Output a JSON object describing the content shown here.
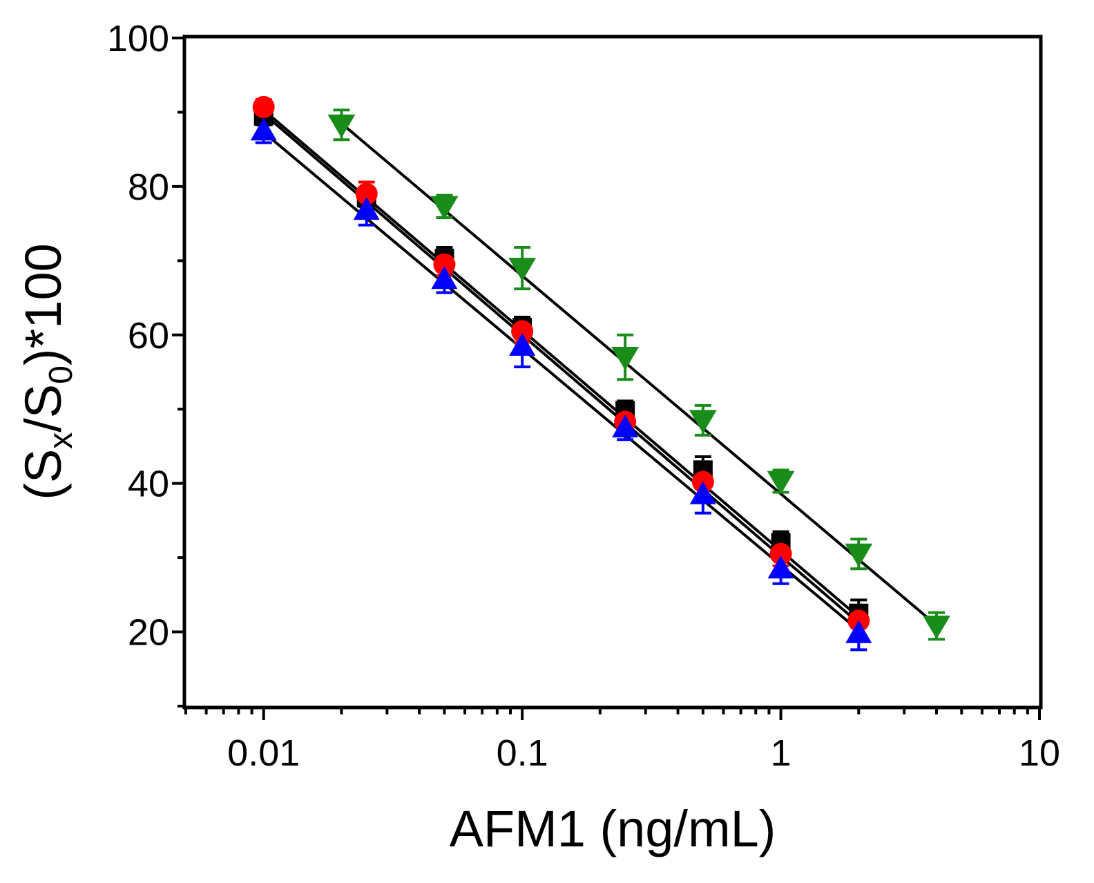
{
  "chart_data": {
    "type": "scatter",
    "title": "",
    "xlabel": "AFM1 (ng/mL)",
    "ylabel": {
      "open": "(S",
      "sub1": "x",
      "slash": "/S",
      "sub2": "0",
      "close": ")*100"
    },
    "xscale": "log",
    "xlim": [
      0.005,
      10
    ],
    "ylim": [
      10,
      100
    ],
    "xticks": [
      {
        "value": 0.01,
        "label": "0.01"
      },
      {
        "value": 0.1,
        "label": "0.1"
      },
      {
        "value": 1,
        "label": "1"
      },
      {
        "value": 10,
        "label": "10"
      }
    ],
    "yticks": [
      {
        "value": 20,
        "label": "20"
      },
      {
        "value": 40,
        "label": "40"
      },
      {
        "value": 60,
        "label": "60"
      },
      {
        "value": 80,
        "label": "80"
      },
      {
        "value": 100,
        "label": "100"
      }
    ],
    "grid": false,
    "legend": "none",
    "series": [
      {
        "name": "series-black-square",
        "marker": "square",
        "color": "#000000",
        "x": [
          0.01,
          0.025,
          0.05,
          0.1,
          0.25,
          0.5,
          1,
          2
        ],
        "y": [
          89.5,
          78.5,
          70.3,
          61.0,
          49.8,
          41.8,
          32.0,
          22.5
        ],
        "err": [
          1.2,
          1.2,
          1.5,
          1.4,
          1.3,
          1.8,
          1.5,
          1.8
        ],
        "fit": [
          [
            0.01,
            90.3
          ],
          [
            2,
            22.0
          ]
        ]
      },
      {
        "name": "series-red-circle",
        "marker": "circle",
        "color": "#ff0000",
        "x": [
          0.01,
          0.025,
          0.05,
          0.1,
          0.25,
          0.5,
          1,
          2
        ],
        "y": [
          90.7,
          79.0,
          69.5,
          60.5,
          48.3,
          40.2,
          30.5,
          21.5
        ],
        "err": [
          1.0,
          1.6,
          1.5,
          1.5,
          1.5,
          1.8,
          1.6,
          2.0
        ],
        "fit": [
          [
            0.01,
            89.8
          ],
          [
            2,
            21.2
          ]
        ]
      },
      {
        "name": "series-blue-triangle",
        "marker": "triangle-up",
        "color": "#0000ff",
        "x": [
          0.01,
          0.025,
          0.05,
          0.1,
          0.25,
          0.5,
          1,
          2
        ],
        "y": [
          87.5,
          76.8,
          67.5,
          58.5,
          47.5,
          38.5,
          28.5,
          19.8
        ],
        "err": [
          1.6,
          2.0,
          1.8,
          2.8,
          1.6,
          2.5,
          2.0,
          2.2
        ],
        "fit": [
          [
            0.01,
            87.3
          ],
          [
            2,
            20.2
          ]
        ]
      },
      {
        "name": "series-green-triangle-down",
        "marker": "triangle-down",
        "color": "#1a8c1a",
        "x": [
          0.02,
          0.05,
          0.1,
          0.25,
          0.5,
          1,
          2,
          4
        ],
        "y": [
          88.3,
          77.3,
          69.0,
          57.0,
          48.5,
          40.3,
          30.5,
          20.8
        ],
        "err": [
          2.0,
          1.5,
          2.8,
          3.0,
          2.0,
          1.5,
          2.0,
          1.8
        ],
        "fit": [
          [
            0.02,
            88.5
          ],
          [
            4,
            20.9
          ]
        ]
      }
    ]
  }
}
